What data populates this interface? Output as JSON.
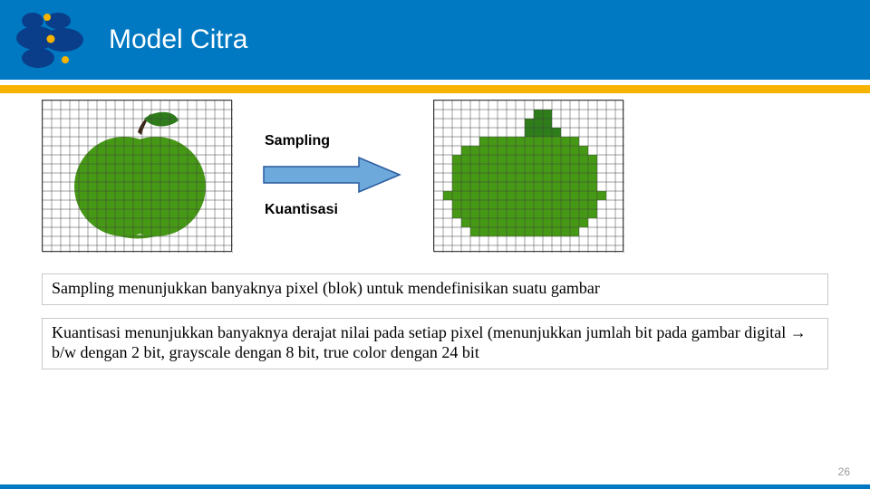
{
  "header": {
    "title": "Model Citra",
    "bg_color": "#0079c2",
    "text_color": "#ffffff",
    "accent_color": "#f8b300",
    "logo_colors": {
      "blob": "#0b3e8a",
      "dot": "#f8b300"
    }
  },
  "diagram": {
    "sampling_label": "Sampling",
    "quant_label": "Kuantisasi",
    "label_fontsize": 16,
    "apple_colors": {
      "body": "#469915",
      "stem": "#3a2616",
      "leaf": "#2e7d1a"
    },
    "arrow_color": "#6ea9dc",
    "arrow_border": "#2a5a9e",
    "grid_color": "#404040",
    "grid_fine": {
      "cols": 21,
      "rows": 17,
      "cell": 10
    },
    "grid_coarse": {
      "cols": 21,
      "rows": 17,
      "cell": 10
    },
    "pixel_apple_color": "#469915",
    "pixel_leaves_color": "#2e7d1a",
    "pixel_map": [
      "000000000000000000000",
      "000000000001100000000",
      "000000000011100000000",
      "000000000011110000000",
      "000001111111111100000",
      "000111111111111110000",
      "001111111111111111000",
      "001111111111111111000",
      "001111111111111111000",
      "001111111111111111000",
      "011111111111111111100",
      "001111111111111111000",
      "001111111111111111000",
      "000111111111111110000",
      "000011111111111100000",
      "000000000000000000000",
      "000000000000000000000"
    ]
  },
  "texts": {
    "sampling_def": "Sampling menunjukkan banyaknya pixel (blok) untuk mendefinisikan suatu gambar",
    "quant_def": "Kuantisasi menunjukkan banyaknya derajat nilai pada setiap pixel (menunjukkan jumlah bit pada gambar digital → b/w dengan 2 bit, grayscale dengan 8 bit, true color dengan 24 bit",
    "text_fontsize": 18,
    "border_color": "#c8c8c8"
  },
  "slide_number": "26"
}
